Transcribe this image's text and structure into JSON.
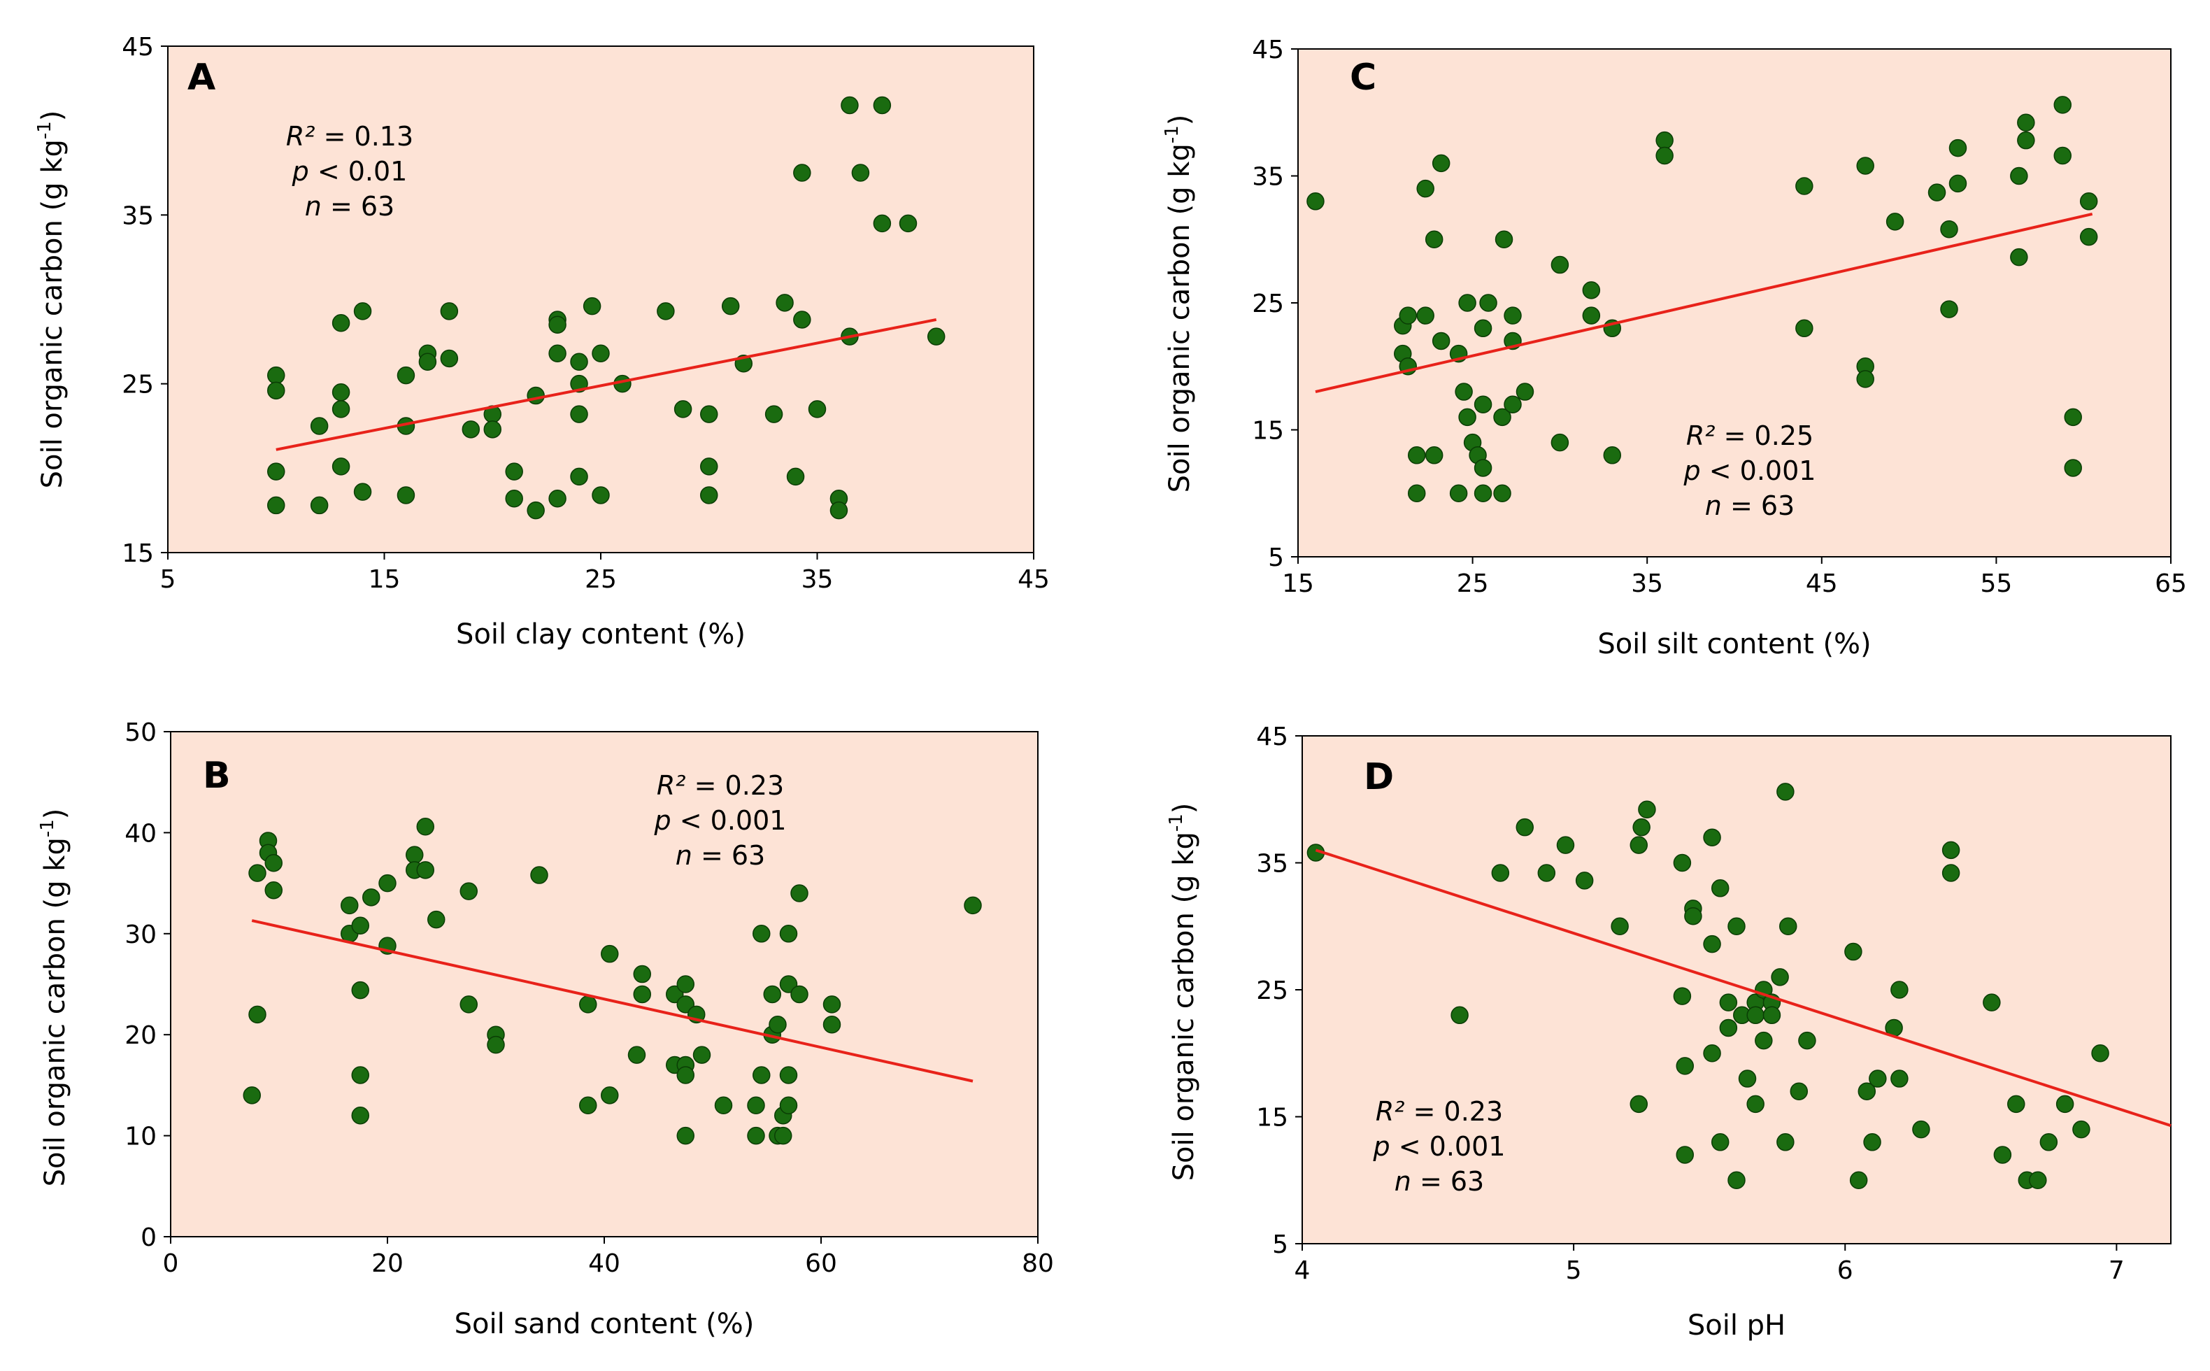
{
  "figure": {
    "panel_count": 4
  },
  "colors": {
    "plot_background": "#fde3d6",
    "point_fill": "#1a6b10",
    "trend_line": "#e8221a"
  },
  "chart_data": [
    {
      "id": "A",
      "type": "scatter",
      "panel_letter": "A",
      "title": "",
      "xlabel": "Soil clay content (%)",
      "ylabel": "Soil organic carbon (g kg",
      "ylabel_sup": "-1",
      "ylabel_close": ")",
      "xlim": [
        5,
        45
      ],
      "ylim": [
        15,
        45
      ],
      "xticks": [
        5,
        15,
        25,
        35,
        45
      ],
      "yticks": [
        15,
        25,
        35,
        45
      ],
      "xtick_labels": [
        "5",
        "15",
        "25",
        "35",
        "45"
      ],
      "ytick_labels": [
        "15",
        "25",
        "35",
        "45"
      ],
      "stats": {
        "r2": "R² = 0.13",
        "p": "p < 0.01",
        "n": "n = 63"
      },
      "stats_parts": {
        "r2_sym": "R²",
        "r2_val": " = 0.13",
        "p_sym": "p",
        "p_val": " < 0.01",
        "n_sym": "n",
        "n_val": " = 63"
      },
      "trendline": {
        "x": [
          10,
          40.5
        ],
        "y": [
          21.1,
          28.8
        ]
      },
      "points": [
        [
          10,
          25.5
        ],
        [
          10,
          24.6
        ],
        [
          10,
          19.8
        ],
        [
          10,
          17.8
        ],
        [
          12,
          22.5
        ],
        [
          12,
          17.8
        ],
        [
          13,
          28.6
        ],
        [
          13,
          24.5
        ],
        [
          13,
          23.5
        ],
        [
          13,
          20.1
        ],
        [
          14,
          29.3
        ],
        [
          14,
          18.6
        ],
        [
          16,
          25.5
        ],
        [
          16,
          22.5
        ],
        [
          16,
          18.4
        ],
        [
          17,
          26.8
        ],
        [
          17,
          26.3
        ],
        [
          18,
          29.3
        ],
        [
          18,
          26.5
        ],
        [
          19,
          22.3
        ],
        [
          20,
          23.2
        ],
        [
          20,
          22.3
        ],
        [
          21,
          19.8
        ],
        [
          21,
          18.2
        ],
        [
          22,
          24.3
        ],
        [
          22,
          17.5
        ],
        [
          23,
          28.8
        ],
        [
          23,
          28.5
        ],
        [
          23,
          26.8
        ],
        [
          23,
          18.2
        ],
        [
          24,
          26.3
        ],
        [
          24,
          25.0
        ],
        [
          24,
          23.2
        ],
        [
          24,
          19.5
        ],
        [
          24.6,
          29.6
        ],
        [
          25,
          26.8
        ],
        [
          25,
          18.4
        ],
        [
          26,
          25.0
        ],
        [
          28,
          29.3
        ],
        [
          28.8,
          23.5
        ],
        [
          30,
          23.2
        ],
        [
          30,
          20.1
        ],
        [
          30,
          18.4
        ],
        [
          31,
          29.6
        ],
        [
          31.6,
          26.2
        ],
        [
          33,
          23.2
        ],
        [
          33.5,
          29.8
        ],
        [
          34,
          19.5
        ],
        [
          34.3,
          37.5
        ],
        [
          34.3,
          28.8
        ],
        [
          35,
          23.5
        ],
        [
          36,
          18.2
        ],
        [
          36,
          17.5
        ],
        [
          36.5,
          41.5
        ],
        [
          36.5,
          27.8
        ],
        [
          37,
          37.5
        ],
        [
          38,
          41.5
        ],
        [
          38,
          34.5
        ],
        [
          39.2,
          34.5
        ],
        [
          40.5,
          27.8
        ]
      ]
    },
    {
      "id": "B",
      "type": "scatter",
      "panel_letter": "B",
      "title": "",
      "xlabel": "Soil sand content (%)",
      "ylabel": "Soil organic carbon (g kg",
      "ylabel_sup": "-1",
      "ylabel_close": ")",
      "xlim": [
        0,
        80
      ],
      "ylim": [
        0,
        50
      ],
      "xticks": [
        0,
        20,
        40,
        60,
        80
      ],
      "yticks": [
        0,
        10,
        20,
        30,
        40,
        50
      ],
      "xtick_labels": [
        "0",
        "20",
        "40",
        "60",
        "80"
      ],
      "ytick_labels": [
        "0",
        "10",
        "20",
        "30",
        "40",
        "50"
      ],
      "stats": {
        "r2": "R² = 0.23",
        "p": "p < 0.001",
        "n": "n = 63"
      },
      "stats_parts": {
        "r2_sym": "R²",
        "r2_val": " = 0.23",
        "p_sym": "p",
        "p_val": " < 0.001",
        "n_sym": "n",
        "n_val": " = 63"
      },
      "trendline": {
        "x": [
          7.5,
          74
        ],
        "y": [
          31.3,
          15.4
        ]
      },
      "points": [
        [
          7.5,
          14.0
        ],
        [
          8,
          36.0
        ],
        [
          8,
          22.0
        ],
        [
          9,
          39.2
        ],
        [
          9,
          38.0
        ],
        [
          9.5,
          37.0
        ],
        [
          9.5,
          34.3
        ],
        [
          16.5,
          32.8
        ],
        [
          16.5,
          30.0
        ],
        [
          17.5,
          30.8
        ],
        [
          17.5,
          24.4
        ],
        [
          17.5,
          16.0
        ],
        [
          17.5,
          12.0
        ],
        [
          18.5,
          33.6
        ],
        [
          20,
          35.0
        ],
        [
          20,
          28.8
        ],
        [
          22.5,
          37.8
        ],
        [
          22.5,
          36.3
        ],
        [
          23.5,
          40.6
        ],
        [
          23.5,
          36.3
        ],
        [
          24.5,
          31.4
        ],
        [
          27.5,
          34.2
        ],
        [
          27.5,
          23.0
        ],
        [
          30,
          20.0
        ],
        [
          30,
          19.0
        ],
        [
          34,
          35.8
        ],
        [
          38.5,
          23.0
        ],
        [
          38.5,
          13.0
        ],
        [
          40.5,
          28.0
        ],
        [
          40.5,
          14.0
        ],
        [
          43,
          18.0
        ],
        [
          43.5,
          26.0
        ],
        [
          43.5,
          24.0
        ],
        [
          46.5,
          24.0
        ],
        [
          46.5,
          17.0
        ],
        [
          47.5,
          25.0
        ],
        [
          47.5,
          23.0
        ],
        [
          47.5,
          17.0
        ],
        [
          47.5,
          16.0
        ],
        [
          47.5,
          10.0
        ],
        [
          48.5,
          22.0
        ],
        [
          49,
          18.0
        ],
        [
          51,
          13.0
        ],
        [
          54,
          13.0
        ],
        [
          54,
          10.0
        ],
        [
          54.5,
          30.0
        ],
        [
          54.5,
          16.0
        ],
        [
          55.5,
          24.0
        ],
        [
          55.5,
          20.0
        ],
        [
          56,
          21.0
        ],
        [
          56,
          10.0
        ],
        [
          56.5,
          12.0
        ],
        [
          56.5,
          10.0
        ],
        [
          57,
          30.0
        ],
        [
          57,
          25.0
        ],
        [
          57,
          16.0
        ],
        [
          57,
          13.0
        ],
        [
          58,
          34.0
        ],
        [
          58,
          24.0
        ],
        [
          61,
          23.0
        ],
        [
          61,
          21.0
        ],
        [
          74,
          32.8
        ]
      ]
    },
    {
      "id": "C",
      "type": "scatter",
      "panel_letter": "C",
      "title": "",
      "xlabel": "Soil silt content (%)",
      "ylabel": "Soil organic carbon (g kg",
      "ylabel_sup": "-1",
      "ylabel_close": ")",
      "xlim": [
        15,
        65
      ],
      "ylim": [
        5,
        45
      ],
      "xticks": [
        15,
        25,
        35,
        45,
        55,
        65
      ],
      "yticks": [
        5,
        15,
        25,
        35,
        45
      ],
      "xtick_labels": [
        "15",
        "25",
        "35",
        "45",
        "55",
        "65"
      ],
      "ytick_labels": [
        "5",
        "15",
        "25",
        "35",
        "45"
      ],
      "stats": {
        "r2": "R² = 0.25",
        "p": "p < 0.001",
        "n": "n = 63"
      },
      "stats_parts": {
        "r2_sym": "R²",
        "r2_val": " = 0.25",
        "p_sym": "p",
        "p_val": " < 0.001",
        "n_sym": "n",
        "n_val": " = 63"
      },
      "trendline": {
        "x": [
          16,
          60.5
        ],
        "y": [
          18.0,
          32.0
        ]
      },
      "points": [
        [
          16,
          33.0
        ],
        [
          21,
          23.2
        ],
        [
          21,
          21.0
        ],
        [
          21.3,
          24.0
        ],
        [
          21.3,
          20.0
        ],
        [
          21.8,
          13.0
        ],
        [
          21.8,
          10.0
        ],
        [
          22.3,
          34.0
        ],
        [
          22.3,
          24.0
        ],
        [
          22.8,
          30.0
        ],
        [
          22.8,
          13.0
        ],
        [
          23.2,
          36.0
        ],
        [
          23.2,
          22.0
        ],
        [
          24.2,
          21.0
        ],
        [
          24.2,
          10.0
        ],
        [
          24.5,
          18.0
        ],
        [
          24.7,
          25.0
        ],
        [
          24.7,
          16.0
        ],
        [
          25,
          14.0
        ],
        [
          25.3,
          13.0
        ],
        [
          25.6,
          23.0
        ],
        [
          25.6,
          17.0
        ],
        [
          25.6,
          12.0
        ],
        [
          25.6,
          10.0
        ],
        [
          25.9,
          25.0
        ],
        [
          26.7,
          16.0
        ],
        [
          26.7,
          10.0
        ],
        [
          26.8,
          30.0
        ],
        [
          27.3,
          24.0
        ],
        [
          27.3,
          22.0
        ],
        [
          27.3,
          17.0
        ],
        [
          28,
          18.0
        ],
        [
          30,
          28.0
        ],
        [
          30,
          14.0
        ],
        [
          31.8,
          26.0
        ],
        [
          31.8,
          24.0
        ],
        [
          33,
          23.0
        ],
        [
          33,
          13.0
        ],
        [
          36,
          37.8
        ],
        [
          36,
          36.6
        ],
        [
          44,
          34.2
        ],
        [
          44,
          23.0
        ],
        [
          47.5,
          35.8
        ],
        [
          47.5,
          20.0
        ],
        [
          47.5,
          19.0
        ],
        [
          49.2,
          31.4
        ],
        [
          51.6,
          33.7
        ],
        [
          52.3,
          30.8
        ],
        [
          52.3,
          24.5
        ],
        [
          52.8,
          37.2
        ],
        [
          52.8,
          34.4
        ],
        [
          56.3,
          35.0
        ],
        [
          56.3,
          28.6
        ],
        [
          56.7,
          39.2
        ],
        [
          56.7,
          37.8
        ],
        [
          58.8,
          40.6
        ],
        [
          58.8,
          36.6
        ],
        [
          59.4,
          16.0
        ],
        [
          59.4,
          12.0
        ],
        [
          60.3,
          33.0
        ],
        [
          60.3,
          30.2
        ]
      ]
    },
    {
      "id": "D",
      "type": "scatter",
      "panel_letter": "D",
      "title": "",
      "xlabel": "Soil pH",
      "ylabel": "Soil organic carbon (g kg",
      "ylabel_sup": "-1",
      "ylabel_close": ")",
      "xlim": [
        4,
        7.2
      ],
      "ylim": [
        5,
        45
      ],
      "xticks": [
        4,
        5,
        6,
        7
      ],
      "yticks": [
        5,
        15,
        25,
        35,
        45
      ],
      "xtick_labels": [
        "4",
        "5",
        "6",
        "7"
      ],
      "ytick_labels": [
        "5",
        "15",
        "25",
        "35",
        "45"
      ],
      "stats": {
        "r2": "R² = 0.23",
        "p": "p < 0.001",
        "n": "n = 63"
      },
      "stats_parts": {
        "r2_sym": "R²",
        "r2_val": " = 0.23",
        "p_sym": "p",
        "p_val": " < 0.001",
        "n_sym": "n",
        "n_val": " = 63"
      },
      "trendline": {
        "x": [
          4.05,
          7.2
        ],
        "y": [
          36.0,
          14.3
        ]
      },
      "points": [
        [
          4.05,
          35.8
        ],
        [
          4.58,
          23.0
        ],
        [
          4.73,
          34.2
        ],
        [
          4.82,
          37.8
        ],
        [
          4.9,
          34.2
        ],
        [
          4.97,
          36.4
        ],
        [
          5.04,
          33.6
        ],
        [
          5.17,
          30.0
        ],
        [
          5.24,
          36.4
        ],
        [
          5.24,
          16.0
        ],
        [
          5.25,
          37.8
        ],
        [
          5.27,
          39.2
        ],
        [
          5.4,
          35.0
        ],
        [
          5.4,
          24.5
        ],
        [
          5.41,
          19.0
        ],
        [
          5.41,
          12.0
        ],
        [
          5.44,
          31.4
        ],
        [
          5.44,
          30.8
        ],
        [
          5.51,
          37.0
        ],
        [
          5.51,
          28.6
        ],
        [
          5.51,
          20.0
        ],
        [
          5.54,
          33.0
        ],
        [
          5.54,
          13.0
        ],
        [
          5.57,
          24.0
        ],
        [
          5.57,
          22.0
        ],
        [
          5.6,
          30.0
        ],
        [
          5.6,
          10.0
        ],
        [
          5.62,
          23.0
        ],
        [
          5.64,
          18.0
        ],
        [
          5.67,
          24.0
        ],
        [
          5.67,
          23.0
        ],
        [
          5.67,
          16.0
        ],
        [
          5.7,
          25.0
        ],
        [
          5.7,
          21.0
        ],
        [
          5.73,
          24.0
        ],
        [
          5.73,
          23.0
        ],
        [
          5.76,
          26.0
        ],
        [
          5.78,
          40.6
        ],
        [
          5.78,
          13.0
        ],
        [
          5.79,
          30.0
        ],
        [
          5.83,
          17.0
        ],
        [
          5.86,
          21.0
        ],
        [
          6.03,
          28.0
        ],
        [
          6.05,
          10.0
        ],
        [
          6.08,
          17.0
        ],
        [
          6.1,
          13.0
        ],
        [
          6.12,
          18.0
        ],
        [
          6.18,
          22.0
        ],
        [
          6.2,
          25.0
        ],
        [
          6.2,
          18.0
        ],
        [
          6.28,
          14.0
        ],
        [
          6.39,
          36.0
        ],
        [
          6.39,
          34.2
        ],
        [
          6.54,
          24.0
        ],
        [
          6.58,
          12.0
        ],
        [
          6.63,
          16.0
        ],
        [
          6.67,
          10.0
        ],
        [
          6.71,
          10.0
        ],
        [
          6.75,
          13.0
        ],
        [
          6.81,
          16.0
        ],
        [
          6.87,
          14.0
        ],
        [
          6.94,
          20.0
        ]
      ]
    }
  ]
}
